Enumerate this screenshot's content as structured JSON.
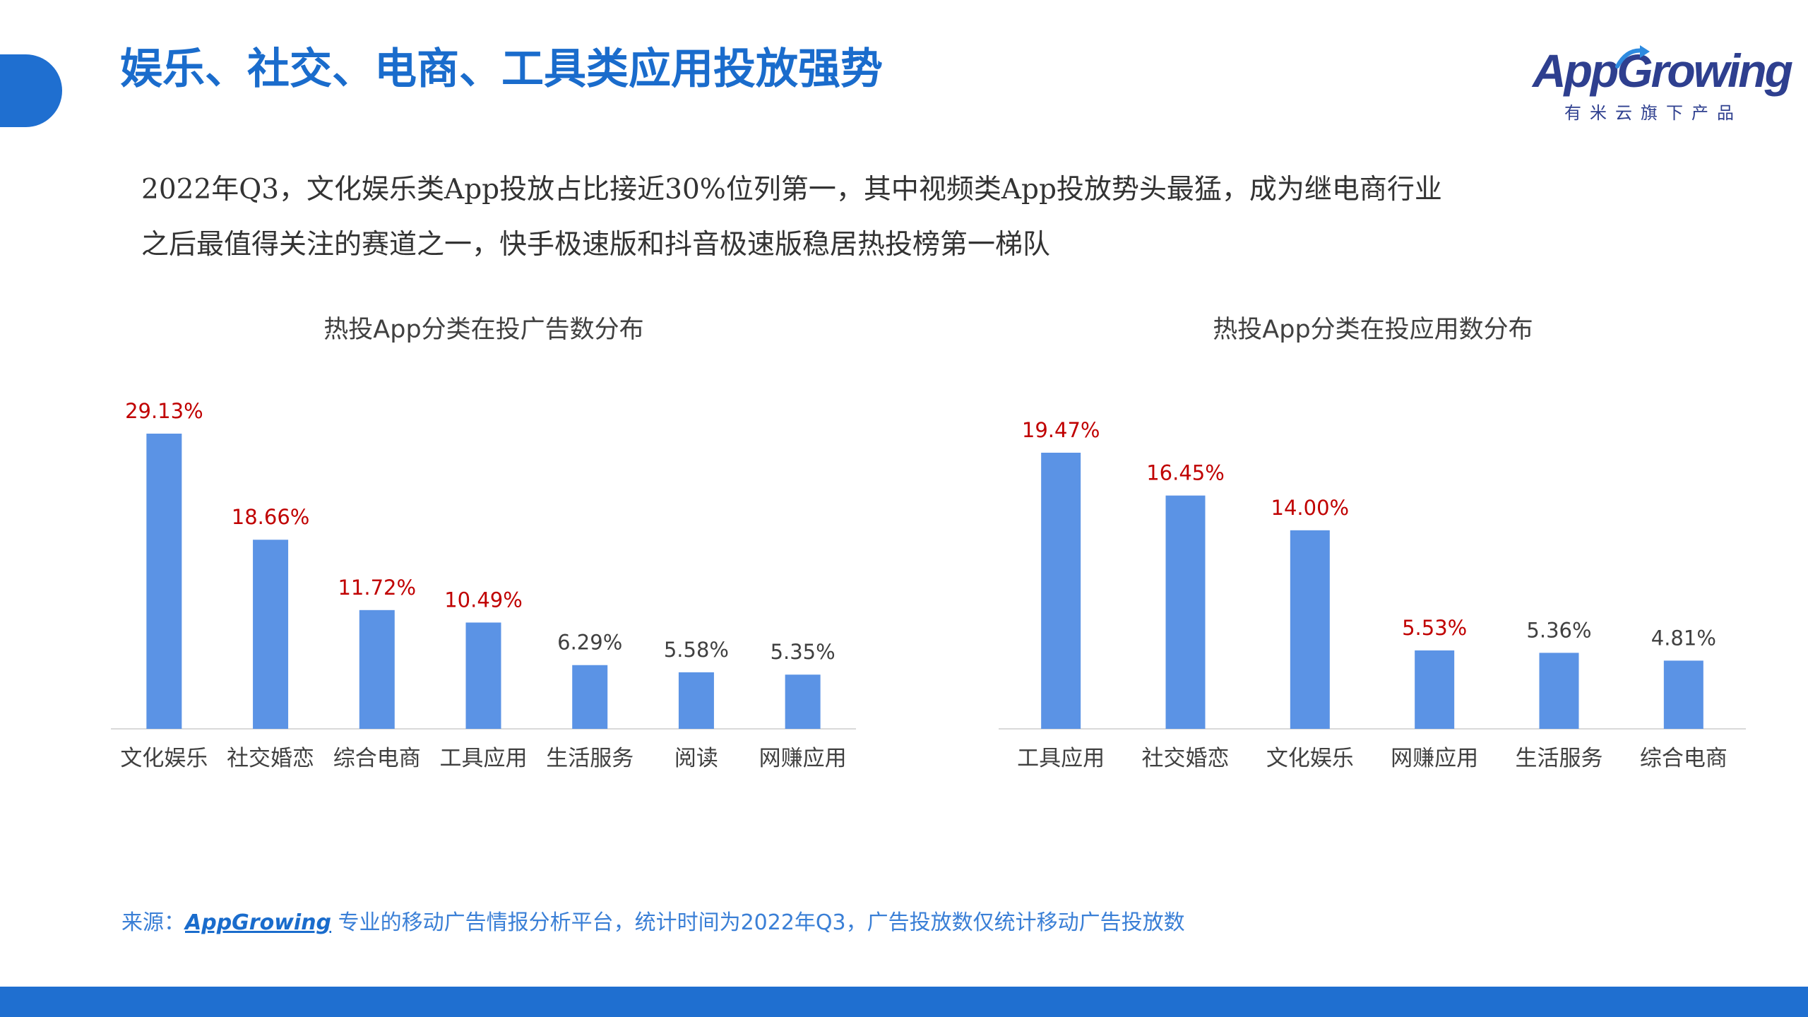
{
  "header": {
    "title": "娱乐、社交、电商、工具类应用投放强势",
    "logo_name": "AppGrowing",
    "logo_subtitle": "有米云旗下产品"
  },
  "intro": {
    "line1": "2022年Q3，文化娱乐类App投放占比接近30%位列第一，其中视频类App投放势头最猛，成为继电商行业",
    "line2": "之后最值得关注的赛道之一，快手极速版和抖音极速版稳居热投榜第一梯队"
  },
  "chart_data": [
    {
      "type": "bar",
      "title": "热投App分类在投广告数分布",
      "categories": [
        "文化娱乐",
        "社交婚恋",
        "综合电商",
        "工具应用",
        "生活服务",
        "阅读",
        "网赚应用"
      ],
      "values": [
        29.13,
        18.66,
        11.72,
        10.49,
        6.29,
        5.58,
        5.35
      ],
      "labels": [
        "29.13%",
        "18.66%",
        "11.72%",
        "10.49%",
        "6.29%",
        "5.58%",
        "5.35%"
      ],
      "highlighted": [
        true,
        true,
        true,
        true,
        false,
        false,
        false
      ],
      "ylim": [
        0,
        29.13
      ],
      "grid": false
    },
    {
      "type": "bar",
      "title": "热投App分类在投应用数分布",
      "categories": [
        "工具应用",
        "社交婚恋",
        "文化娱乐",
        "网赚应用",
        "生活服务",
        "综合电商"
      ],
      "values": [
        19.47,
        16.45,
        14.0,
        5.53,
        5.36,
        4.81
      ],
      "labels": [
        "19.47%",
        "16.45%",
        "14.00%",
        "5.53%",
        "5.36%",
        "4.81%"
      ],
      "highlighted": [
        true,
        true,
        true,
        true,
        false,
        false
      ],
      "ylim": [
        0,
        19.47
      ],
      "grid": false
    }
  ],
  "colors": {
    "bar": "#5b93e5",
    "label_highlight": "#c00000",
    "label_normal": "#404040",
    "axis": "#d9d9d9",
    "accent": "#1f6fd0"
  },
  "source": {
    "prefix": "来源：",
    "brand": "AppGrowing",
    "text": " 专业的移动广告情报分析平台，统计时间为2022年Q3，广告投放数仅统计移动广告投放数"
  }
}
